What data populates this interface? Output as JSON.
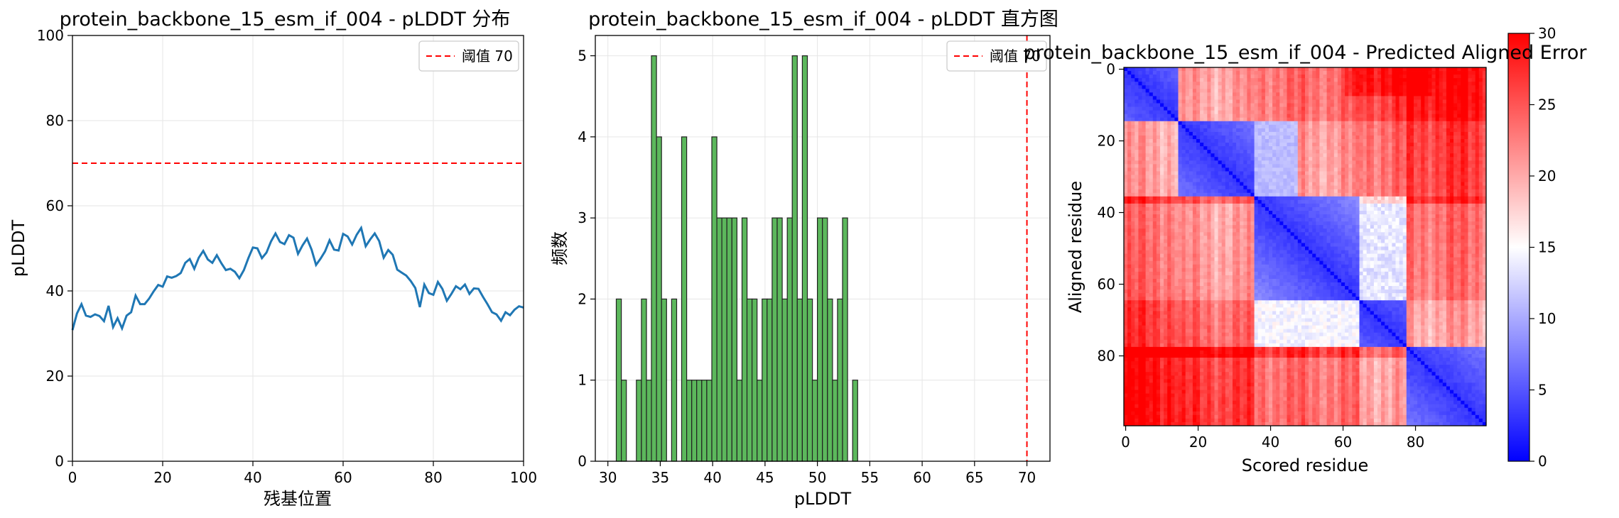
{
  "chart_data": [
    {
      "type": "line",
      "title": "protein_backbone_15_esm_if_004 - pLDDT 分布",
      "xlabel": "残基位置",
      "ylabel": "pLDDT",
      "xlim": [
        0,
        100
      ],
      "ylim": [
        0,
        100
      ],
      "xticks": [
        0,
        20,
        40,
        60,
        80,
        100
      ],
      "yticks": [
        0,
        20,
        40,
        60,
        80,
        100
      ],
      "grid": true,
      "legend_position": "top-right",
      "threshold": {
        "value": 70,
        "label": "阈值 70",
        "color": "#ff0000"
      },
      "series": [
        {
          "color": "#1f77b4",
          "x": [
            0,
            1,
            2,
            3,
            4,
            5,
            6,
            7,
            8,
            9,
            10,
            11,
            12,
            13,
            14,
            15,
            16,
            17,
            18,
            19,
            20,
            21,
            22,
            23,
            24,
            25,
            26,
            27,
            28,
            29,
            30,
            31,
            32,
            33,
            34,
            35,
            36,
            37,
            38,
            39,
            40,
            41,
            42,
            43,
            44,
            45,
            46,
            47,
            48,
            49,
            50,
            51,
            52,
            53,
            54,
            55,
            56,
            57,
            58,
            59,
            60,
            61,
            62,
            63,
            64,
            65,
            66,
            67,
            68,
            69,
            70,
            71,
            72,
            73,
            74,
            75,
            76,
            77,
            78,
            79,
            80,
            81,
            82,
            83,
            84,
            85,
            86,
            87,
            88,
            89,
            90,
            91,
            92,
            93,
            94,
            95,
            96,
            97,
            98,
            99,
            100
          ],
          "values": [
            30.8,
            34.7,
            36.9,
            34.2,
            33.9,
            34.5,
            34.1,
            32.9,
            36.5,
            31.5,
            33.6,
            31.2,
            34.2,
            35.0,
            38.9,
            36.9,
            36.9,
            38.2,
            39.9,
            41.4,
            41.0,
            43.4,
            43.1,
            43.5,
            44.2,
            46.6,
            47.5,
            45.2,
            47.8,
            49.4,
            47.4,
            46.6,
            48.4,
            46.5,
            44.9,
            45.2,
            44.5,
            43.0,
            44.9,
            47.7,
            50.2,
            50.0,
            47.7,
            49.0,
            51.6,
            53.5,
            51.5,
            51.0,
            53.1,
            52.5,
            48.7,
            50.7,
            52.3,
            49.7,
            46.1,
            47.6,
            49.3,
            51.9,
            49.7,
            49.5,
            53.4,
            52.8,
            50.9,
            53.2,
            54.8,
            50.5,
            52.1,
            53.5,
            51.7,
            47.8,
            49.6,
            48.5,
            45.0,
            44.3,
            43.6,
            42.3,
            40.7,
            36.2,
            41.5,
            39.5,
            39.1,
            42.1,
            40.5,
            37.7,
            39.3,
            41.1,
            40.4,
            41.5,
            39.3,
            40.6,
            40.5,
            38.6,
            36.9,
            35.0,
            34.5,
            33.0,
            35.0,
            34.3,
            35.6,
            36.4,
            36.1
          ]
        }
      ]
    },
    {
      "type": "bar",
      "title": "protein_backbone_15_esm_if_004 - pLDDT 直方图",
      "xlabel": "pLDDT",
      "ylabel": "频数",
      "xlim": [
        28.8,
        72.2
      ],
      "ylim": [
        0,
        5.25
      ],
      "xticks": [
        30,
        35,
        40,
        45,
        50,
        55,
        60,
        65,
        70
      ],
      "yticks": [
        0,
        1,
        2,
        3,
        4,
        5
      ],
      "grid": true,
      "legend_position": "top-right",
      "threshold": {
        "value": 70,
        "label": "阈值 70",
        "color": "#ff0000"
      },
      "bar_color": "#5cb85c",
      "bin_start": 30.8,
      "bin_width": 0.48,
      "values": [
        2,
        1,
        0,
        0,
        1,
        2,
        1,
        5,
        4,
        2,
        0,
        2,
        0,
        4,
        1,
        1,
        1,
        1,
        1,
        4,
        3,
        3,
        3,
        3,
        1,
        3,
        2,
        2,
        1,
        2,
        2,
        3,
        3,
        2,
        3,
        5,
        2,
        5,
        2,
        1,
        3,
        3,
        2,
        1,
        2,
        3,
        0,
        1
      ]
    },
    {
      "type": "heatmap",
      "title": "protein_backbone_15_esm_if_004 - Predicted Aligned Error",
      "xlabel": "Scored residue",
      "ylabel": "Aligned residue",
      "n": 100,
      "xticks": [
        0,
        20,
        40,
        60,
        80
      ],
      "yticks": [
        0,
        20,
        40,
        60,
        80
      ],
      "colorscale": "bwr",
      "vmin": 0,
      "vmax": 30,
      "colorbar_ticks": [
        0,
        5,
        10,
        15,
        20,
        25,
        30
      ],
      "domains": [
        [
          0,
          15
        ],
        [
          15,
          36
        ],
        [
          36,
          65
        ],
        [
          65,
          78
        ],
        [
          78,
          100
        ]
      ]
    }
  ]
}
